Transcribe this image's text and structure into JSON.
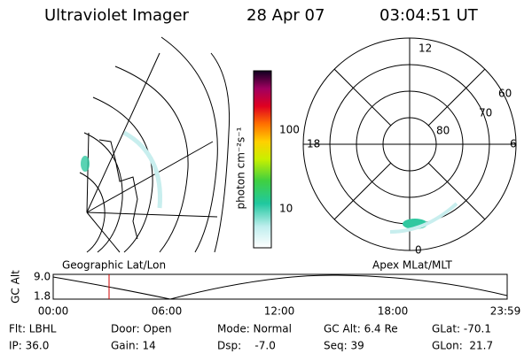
{
  "header": {
    "title": "Ultraviolet Imager",
    "date": "28 Apr 07",
    "time": "03:04:51 UT"
  },
  "colorbar": {
    "label": "photon cm⁻²s⁻¹",
    "ticks": [
      "100",
      "10"
    ]
  },
  "polar": {
    "lat_labels": [
      "60",
      "70",
      "80"
    ],
    "mlt_labels": [
      "12",
      "18",
      "6",
      "0"
    ]
  },
  "panels": {
    "left_label": "Geographic Lat/Lon",
    "right_label": "Apex MLat/MLT"
  },
  "altitude": {
    "axis_label": "GC Alt",
    "ticks": [
      "9.0",
      "1.8"
    ],
    "times": [
      "00:00",
      "06:00",
      "12:00",
      "18:00",
      "23:59"
    ]
  },
  "info": [
    [
      "Flt: LBHL",
      "Door: Open",
      "Mode: Normal",
      "GC Alt: 6.4 Re",
      "GLat: -70.1"
    ],
    [
      "IP: 36.0",
      "Gain: 14",
      "Dsp:    -7.0",
      "Seq: 39",
      "GLon:  21.7"
    ]
  ]
}
